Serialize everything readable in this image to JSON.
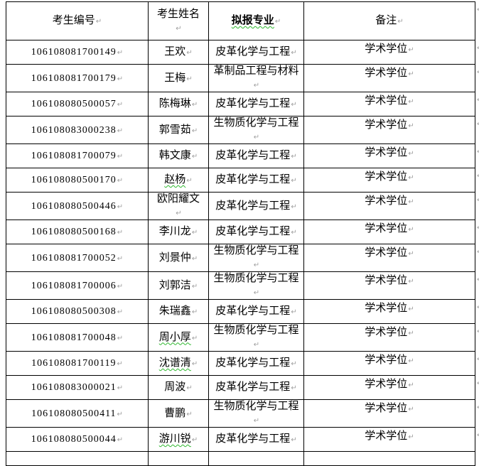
{
  "table": {
    "columns": [
      {
        "key": "exam_id",
        "label": "考生编号"
      },
      {
        "key": "name",
        "label": "考生姓名"
      },
      {
        "key": "major",
        "label": "拟报专业",
        "bold": true,
        "spellcheck_underline": true
      },
      {
        "key": "remark",
        "label": "备注"
      }
    ],
    "rows": [
      {
        "exam_id": "106108081700149",
        "name": "王欢",
        "major": "皮革化学与工程",
        "remark": "学术学位",
        "name_spellcheck_underline": false
      },
      {
        "exam_id": "106108081700179",
        "name": "王梅",
        "major": "革制品工程与材料",
        "remark": "学术学位",
        "name_spellcheck_underline": false
      },
      {
        "exam_id": "106108080500057",
        "name": "陈梅琳",
        "major": "皮革化学与工程",
        "remark": "学术学位",
        "name_spellcheck_underline": false
      },
      {
        "exam_id": "106108083000238",
        "name": "郭雪茹",
        "major": "生物质化学与工程",
        "remark": "学术学位",
        "name_spellcheck_underline": false
      },
      {
        "exam_id": "106108081700079",
        "name": "韩文康",
        "major": "皮革化学与工程",
        "remark": "学术学位",
        "name_spellcheck_underline": false
      },
      {
        "exam_id": "106108080500170",
        "name": "赵杨",
        "major": "皮革化学与工程",
        "remark": "学术学位",
        "name_spellcheck_underline": true
      },
      {
        "exam_id": "106108080500446",
        "name": "欧阳耀文",
        "major": "皮革化学与工程",
        "remark": "学术学位",
        "name_spellcheck_underline": false
      },
      {
        "exam_id": "106108080500168",
        "name": "李川龙",
        "major": "皮革化学与工程",
        "remark": "学术学位",
        "name_spellcheck_underline": false
      },
      {
        "exam_id": "106108081700052",
        "name": "刘景仲",
        "major": "生物质化学与工程",
        "remark": "学术学位",
        "name_spellcheck_underline": false
      },
      {
        "exam_id": "106108081700006",
        "name": "刘郭洁",
        "major": "生物质化学与工程",
        "remark": "学术学位",
        "name_spellcheck_underline": false
      },
      {
        "exam_id": "106108080500308",
        "name": "朱瑞鑫",
        "major": "皮革化学与工程",
        "remark": "学术学位",
        "name_spellcheck_underline": false
      },
      {
        "exam_id": "106108081700048",
        "name": "周小厚",
        "major": "生物质化学与工程",
        "remark": "学术学位",
        "name_spellcheck_underline": true
      },
      {
        "exam_id": "106108081700119",
        "name": "沈谱清",
        "major": "皮革化学与工程",
        "remark": "学术学位",
        "name_spellcheck_underline": true
      },
      {
        "exam_id": "106108083000021",
        "name": "周波",
        "major": "皮革化学与工程",
        "remark": "学术学位",
        "name_spellcheck_underline": false
      },
      {
        "exam_id": "106108080500411",
        "name": "曹鹏",
        "major": "生物质化学与工程",
        "remark": "学术学位",
        "name_spellcheck_underline": false
      },
      {
        "exam_id": "106108080500044",
        "name": "游川锐",
        "major": "皮革化学与工程",
        "remark": "学术学位",
        "name_spellcheck_underline": true
      }
    ]
  },
  "formatting_marks": {
    "end_of_line": "↵"
  },
  "colors": {
    "background": "#ffffff",
    "border": "#000000",
    "text": "#000000",
    "formatting_mark": "#9f9f9f",
    "spellcheck_underline": "#2eb82e"
  }
}
